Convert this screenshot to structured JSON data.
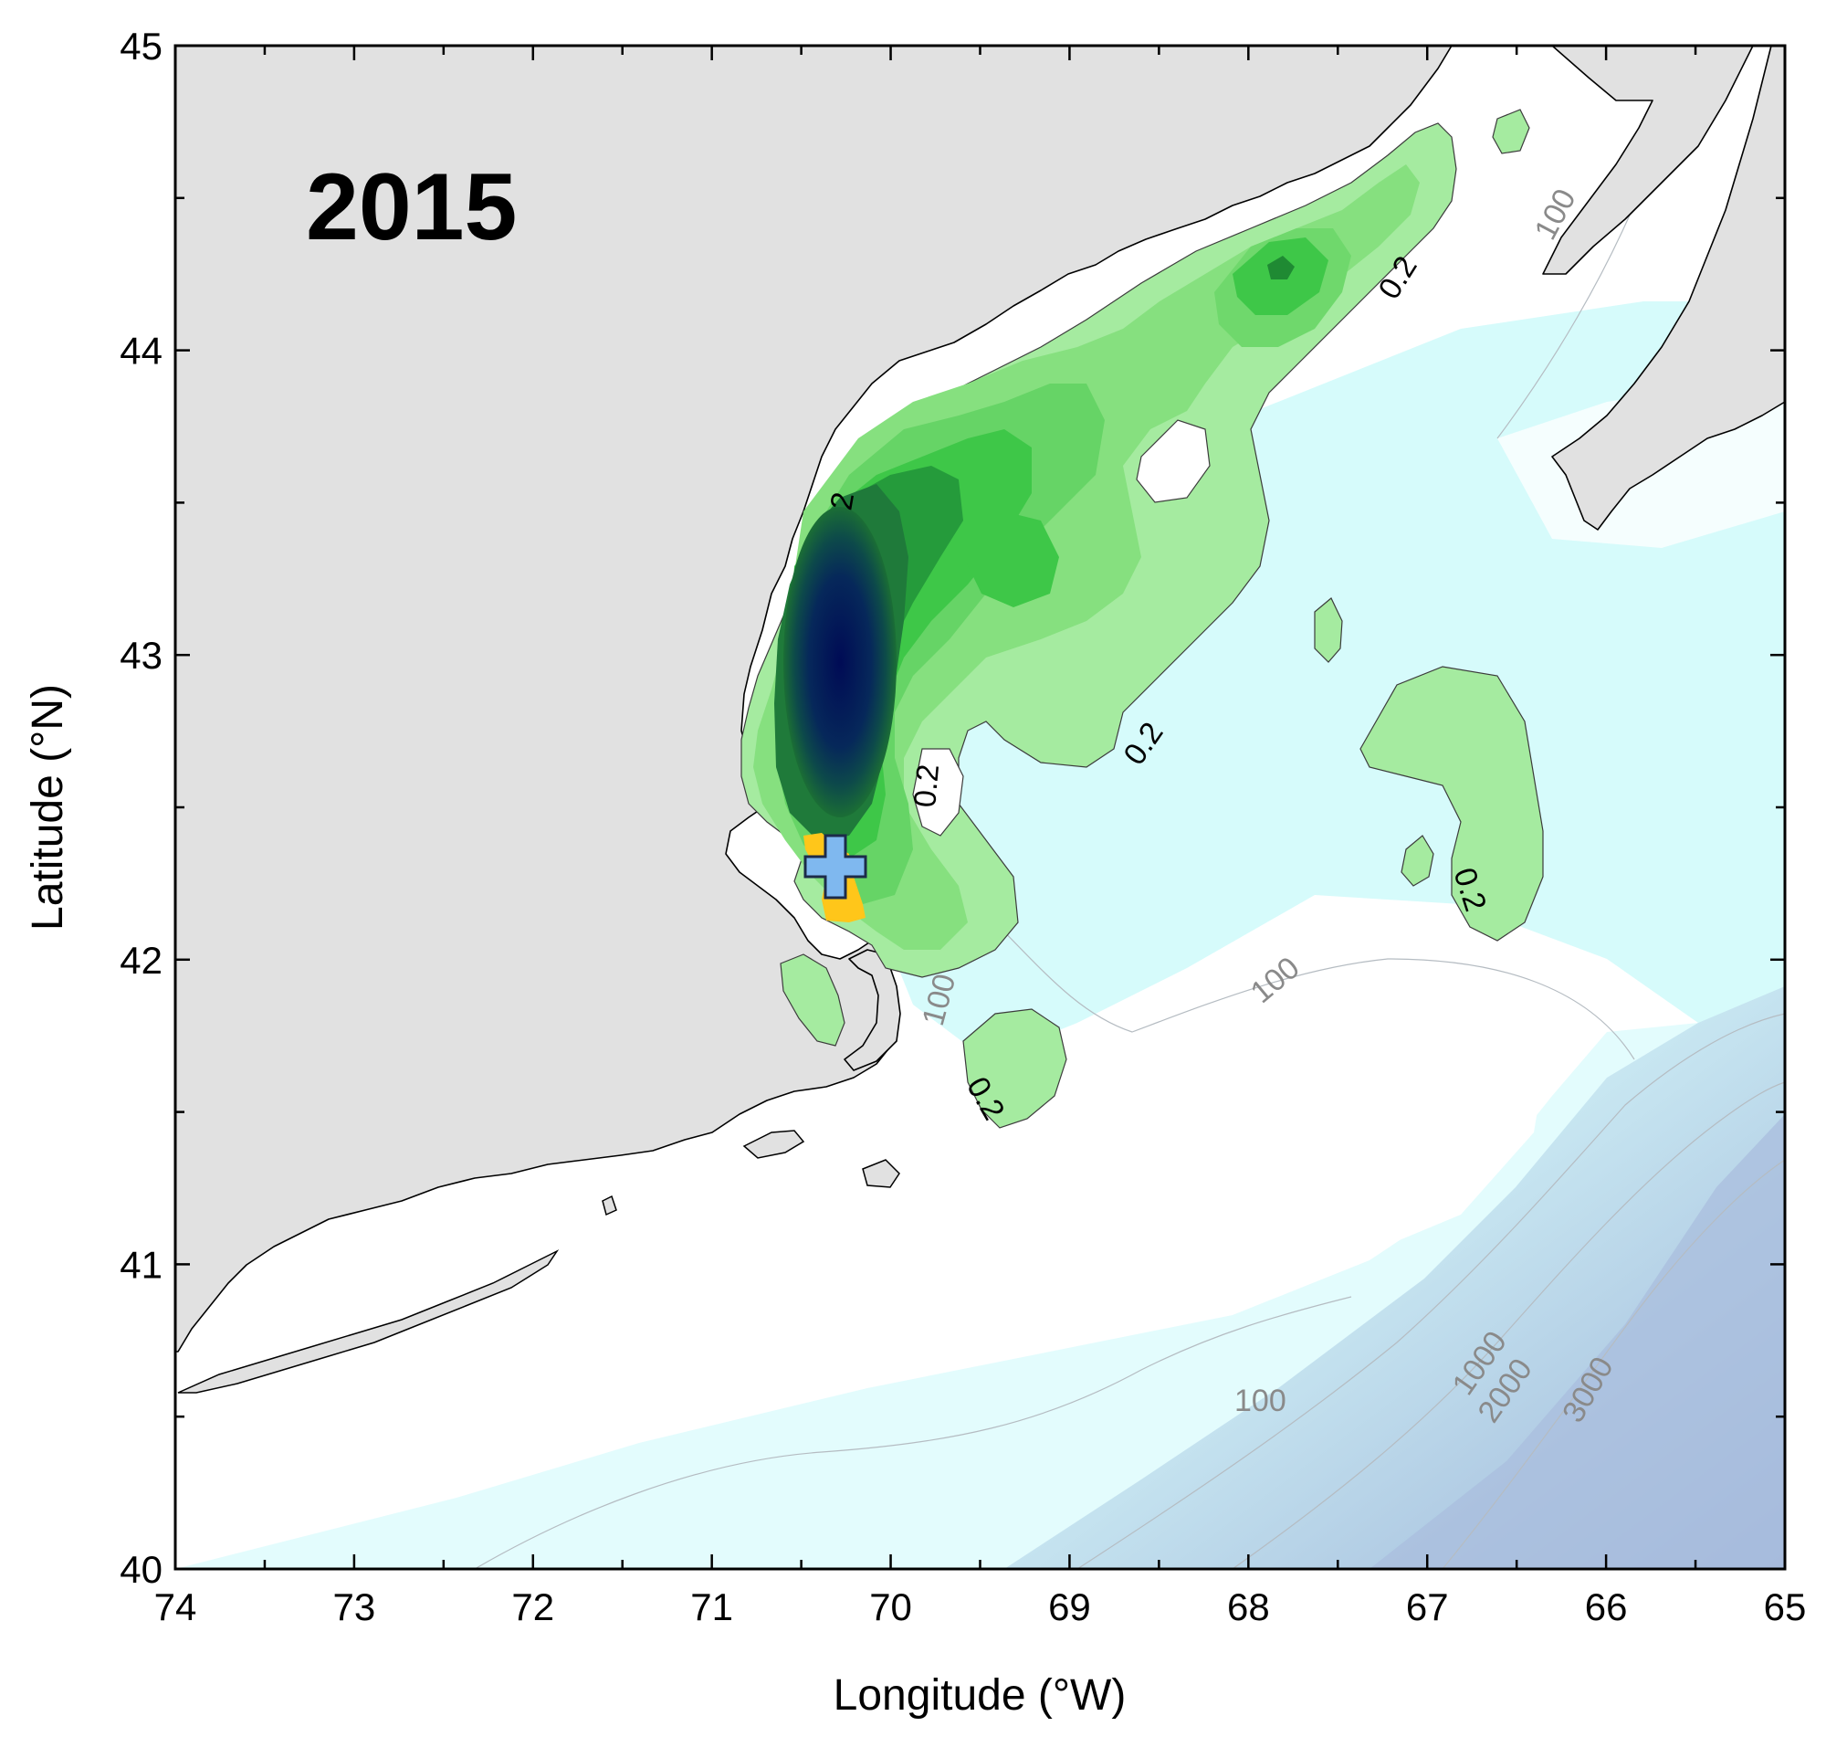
{
  "figure": {
    "year_label": "2015",
    "x_axis": {
      "title": "Longitude (°W)",
      "range": [
        74,
        65
      ],
      "ticks": [
        "74",
        "73",
        "72",
        "71",
        "70",
        "69",
        "68",
        "67",
        "66",
        "65"
      ]
    },
    "y_axis": {
      "title": "Latitude (°N)",
      "range": [
        40,
        45
      ],
      "ticks": [
        "40",
        "41",
        "42",
        "43",
        "44",
        "45"
      ]
    },
    "concentration_contour_labels": {
      "main": "2",
      "c1": "0.2",
      "c2": "0.2",
      "c3": "0.2",
      "c4": "0.2",
      "c5": "0.2"
    },
    "bathymetry_labels": {
      "b1": "100",
      "b2": "100",
      "b3": "100",
      "b4": "100",
      "b5": "1000",
      "b6": "2000",
      "b7": "3000"
    },
    "colors": {
      "land": "#e1e1e1",
      "shelf_water": "#ffffff",
      "shallow_cyan": "#d6fbfb",
      "deep_blue": "#9db4d8",
      "bloom_low": "#a5eba0",
      "bloom_high": "#1e8a2e",
      "bloom_max": "#000b55",
      "highlight_patch": "#ffc61a",
      "station_marker": "#7fb8ef"
    },
    "markers": [
      {
        "name": "station",
        "shape": "plus",
        "longitude_w": 70.28,
        "latitude_n": 42.33
      }
    ]
  }
}
